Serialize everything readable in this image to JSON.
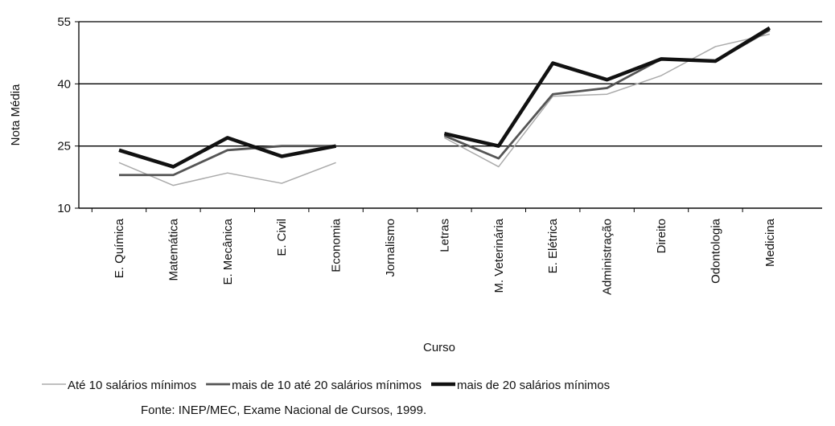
{
  "chart_data": {
    "type": "line",
    "x_label": "Curso",
    "y_label": "Nota Média",
    "source": "Fonte: INEP/MEC, Exame Nacional de Cursos, 1999.",
    "categories": [
      "E. Química",
      "Matemática",
      "E. Mecânica",
      "E. Civil",
      "Economia",
      "Jornalismo",
      "Letras",
      "M. Veterinária",
      "E. Elétrica",
      "Administração",
      "Direito",
      "Odontologia",
      "Medicina"
    ],
    "series": [
      {
        "name": "Até 10 salários mínimos",
        "color": "#aaaaaa",
        "values": [
          21,
          15.5,
          18.5,
          16,
          21,
          null,
          27,
          20,
          37,
          37.5,
          42,
          49,
          52
        ]
      },
      {
        "name": "mais de 10 até 20 salários mínimos",
        "color": "#555555",
        "values": [
          18,
          18,
          24,
          25,
          25,
          null,
          27.5,
          22,
          37.5,
          39,
          46,
          45.5,
          53
        ]
      },
      {
        "name": "mais de 20 salários mínimos",
        "color": "#111111",
        "values": [
          24,
          20,
          27,
          22.5,
          25,
          null,
          28,
          25,
          45,
          41,
          46,
          45.5,
          53.5
        ]
      }
    ],
    "ylim": [
      10,
      55
    ],
    "yticks": [
      10,
      25,
      40,
      55
    ],
    "grid": true
  }
}
